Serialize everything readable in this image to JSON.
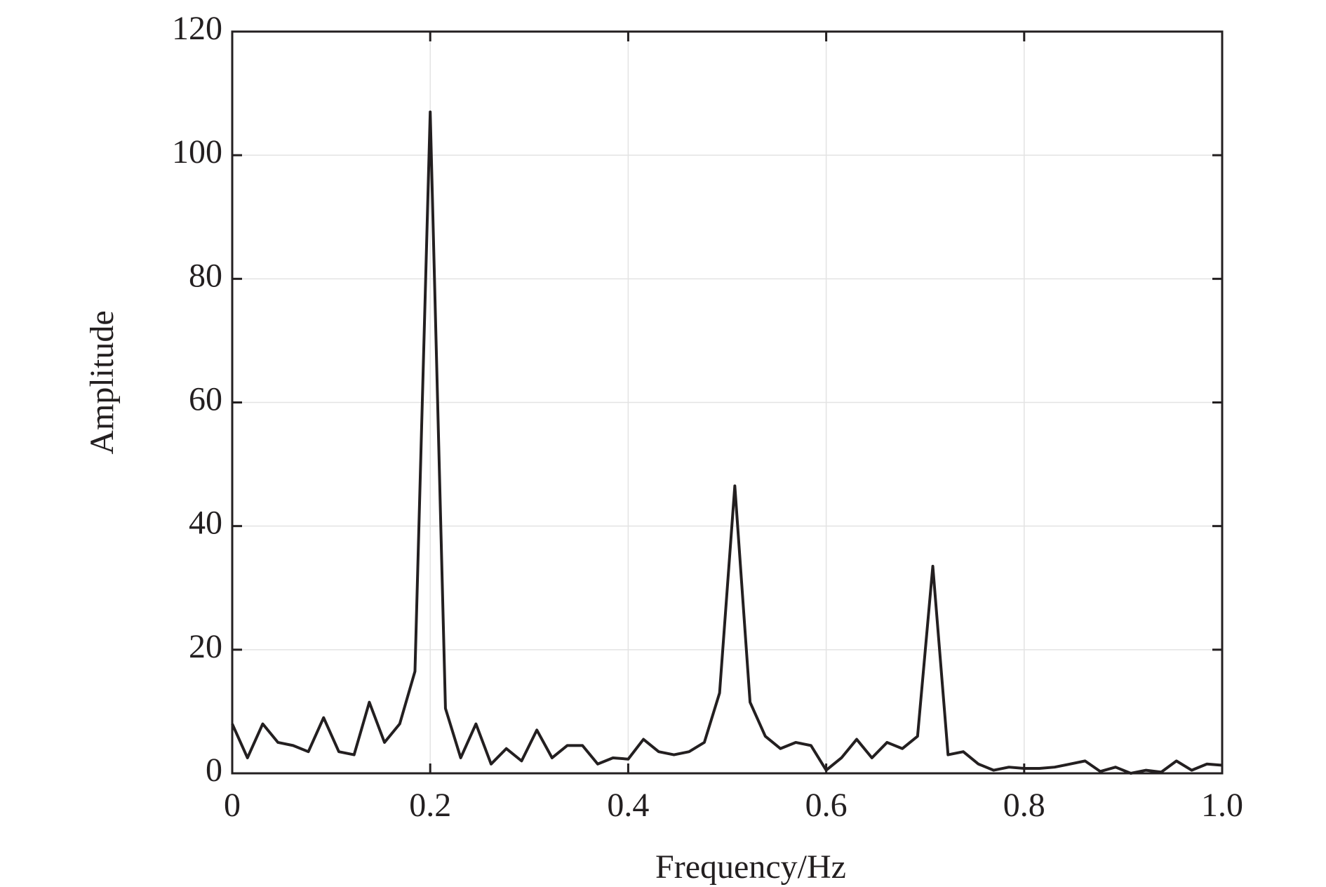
{
  "chart_data": {
    "type": "line",
    "xlabel": "Frequency/Hz",
    "ylabel": "Amplitude",
    "x": [
      0,
      0.0154,
      0.0308,
      0.0462,
      0.0615,
      0.0769,
      0.0923,
      0.1077,
      0.1231,
      0.1385,
      0.1538,
      0.1692,
      0.1846,
      0.2,
      0.2154,
      0.2308,
      0.2462,
      0.2615,
      0.2769,
      0.2923,
      0.3077,
      0.3231,
      0.3385,
      0.3538,
      0.3692,
      0.3846,
      0.4,
      0.4154,
      0.4308,
      0.4462,
      0.4615,
      0.4769,
      0.4923,
      0.5077,
      0.5231,
      0.5385,
      0.5538,
      0.5692,
      0.5846,
      0.6,
      0.6154,
      0.6308,
      0.6462,
      0.6615,
      0.6769,
      0.6923,
      0.7077,
      0.7231,
      0.7385,
      0.7538,
      0.7692,
      0.7846,
      0.8,
      0.8154,
      0.8308,
      0.8462,
      0.8615,
      0.8769,
      0.8923,
      0.9077,
      0.9231,
      0.9385,
      0.9538,
      0.9692,
      0.9846,
      1
    ],
    "values": [
      8,
      2.5,
      8,
      5,
      4.5,
      3.5,
      9,
      3.5,
      3,
      11.5,
      5,
      8,
      16.5,
      107,
      10.5,
      2.5,
      8,
      1.5,
      4,
      2,
      7,
      2.5,
      4.5,
      4.5,
      1.5,
      2.5,
      2.3,
      5.5,
      3.5,
      3,
      3.5,
      5,
      13,
      46.5,
      11.5,
      6,
      4,
      5,
      4.5,
      0.5,
      2.5,
      5.5,
      2.5,
      5,
      4,
      6,
      33.5,
      3,
      3.5,
      1.5,
      0.5,
      1,
      0.8,
      0.8,
      1,
      1.5,
      2,
      0.3,
      1,
      0,
      0.5,
      0.2,
      2,
      0.5,
      1.5,
      1.3
    ],
    "color": "#231f20",
    "xlim": [
      0,
      1
    ],
    "xticks": [
      0,
      0.2,
      0.4,
      0.6,
      0.8,
      {
        "value": 1,
        "label": "1.0"
      }
    ],
    "ylim": [
      0,
      120
    ],
    "yticks": [
      0,
      20,
      40,
      60,
      80,
      100,
      120
    ],
    "grid": true
  }
}
